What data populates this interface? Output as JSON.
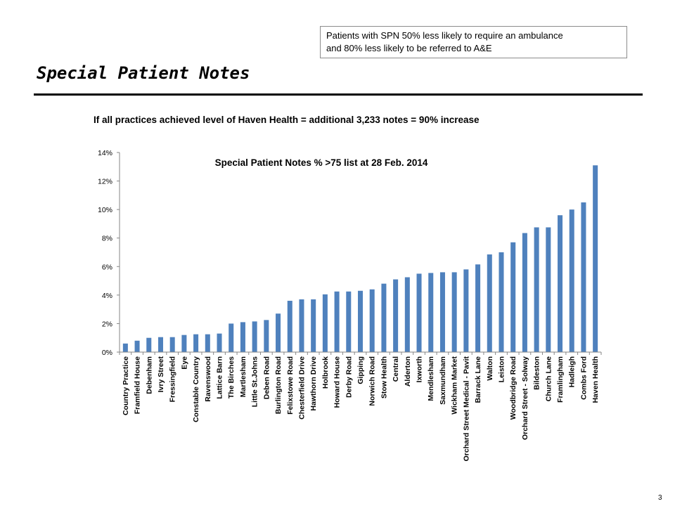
{
  "callout": {
    "line1": "Patients with SPN 50% less likely to require an ambulance",
    "line2": "and 80% less likely to be referred to A&E"
  },
  "slide_title": "Special Patient Notes",
  "note": "If all practices achieved level of Haven Health = additional 3,233 notes = 90% increase",
  "page_number": "3",
  "colors": {
    "bar": "#4f81bd",
    "axis": "#868686",
    "text": "#000000"
  },
  "chart_data": {
    "type": "bar",
    "title": "Special Patient Notes % >75 list at 28 Feb. 2014",
    "xlabel": "",
    "ylabel": "",
    "ylim": [
      0,
      14
    ],
    "y_ticks": [
      0,
      2,
      4,
      6,
      8,
      10,
      12,
      14
    ],
    "y_tick_labels": [
      "0%",
      "2%",
      "4%",
      "6%",
      "8%",
      "10%",
      "12%",
      "14%"
    ],
    "grid": false,
    "legend": "none",
    "categories": [
      "Country Practice",
      "Framfield House",
      "Debenham",
      "Ivry Street",
      "Fressingfield",
      "Eye",
      "Constable Country",
      "Ravenswood",
      "Lattice Barn",
      "The Birches",
      "Martlesham",
      "Little St.Johns",
      "Deben Road",
      "Burlington Road",
      "Felixstowe Road",
      "Chesterfield Drive",
      "Hawthorn Drive",
      "Holbrook",
      "Howard House",
      "Derby Road",
      "Gipping",
      "Norwich Road",
      "Stow Health",
      "Central",
      "Alderton",
      "Ixworth",
      "Mendlesham",
      "Saxmundham",
      "Wickham Market",
      "Orchard Street Medical - Pavit",
      "Barrack Lane",
      "Walton",
      "Leiston",
      "Woodbridge Road",
      "Orchard Street - Solway",
      "Bildeston",
      "Church Lane",
      "Framlingham",
      "Hadleigh",
      "Combs Ford",
      "Haven Health"
    ],
    "values": [
      0.6,
      0.8,
      1.0,
      1.05,
      1.05,
      1.2,
      1.25,
      1.25,
      1.3,
      2.0,
      2.1,
      2.15,
      2.25,
      2.7,
      3.6,
      3.7,
      3.7,
      4.05,
      4.25,
      4.25,
      4.3,
      4.4,
      4.8,
      5.1,
      5.25,
      5.5,
      5.55,
      5.6,
      5.6,
      5.8,
      6.15,
      6.85,
      7.0,
      7.7,
      8.35,
      8.75,
      8.75,
      9.6,
      10.0,
      10.5,
      13.1
    ]
  }
}
